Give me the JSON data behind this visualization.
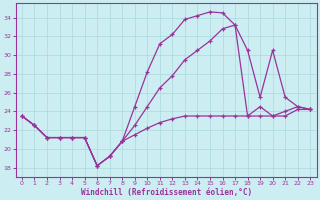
{
  "xlabel": "Windchill (Refroidissement éolien,°C)",
  "bg_color": "#cceef2",
  "grid_color": "#aad8dc",
  "line_color": "#993399",
  "xlim_min": -0.5,
  "xlim_max": 23.5,
  "ylim_min": 17.0,
  "ylim_max": 35.5,
  "yticks": [
    18,
    20,
    22,
    24,
    26,
    28,
    30,
    32,
    34
  ],
  "xticks": [
    0,
    1,
    2,
    3,
    4,
    5,
    6,
    7,
    8,
    9,
    10,
    11,
    12,
    13,
    14,
    15,
    16,
    17,
    18,
    19,
    20,
    21,
    22,
    23
  ],
  "curve1_x": [
    0,
    1,
    2,
    3,
    4,
    5,
    6,
    7,
    8,
    9,
    10,
    11,
    12,
    13,
    14,
    15,
    16,
    17,
    18,
    19,
    20,
    21,
    22,
    23
  ],
  "curve1_y": [
    23.5,
    22.5,
    21.2,
    21.2,
    21.2,
    21.2,
    18.2,
    19.2,
    20.8,
    24.5,
    28.2,
    31.2,
    32.2,
    33.8,
    34.2,
    34.6,
    34.5,
    33.2,
    30.5,
    25.5,
    30.5,
    25.5,
    24.5,
    24.2
  ],
  "curve2_x": [
    0,
    1,
    2,
    3,
    4,
    5,
    6,
    7,
    8,
    9,
    10,
    11,
    12,
    13,
    14,
    15,
    16,
    17,
    18,
    19,
    20,
    21,
    22,
    23
  ],
  "curve2_y": [
    23.5,
    22.5,
    21.2,
    21.2,
    21.2,
    21.2,
    18.2,
    19.2,
    20.8,
    22.5,
    24.5,
    26.5,
    27.8,
    29.5,
    30.5,
    31.5,
    32.8,
    33.2,
    23.5,
    24.5,
    23.5,
    24.0,
    24.5,
    24.2
  ],
  "curve3_x": [
    0,
    1,
    2,
    3,
    4,
    5,
    6,
    7,
    8,
    9,
    10,
    11,
    12,
    13,
    14,
    15,
    16,
    17,
    18,
    19,
    20,
    21,
    22,
    23
  ],
  "curve3_y": [
    23.5,
    22.5,
    21.2,
    21.2,
    21.2,
    21.2,
    18.2,
    19.2,
    20.8,
    21.5,
    22.2,
    22.8,
    23.2,
    23.5,
    23.5,
    23.5,
    23.5,
    23.5,
    23.5,
    23.5,
    23.5,
    23.5,
    24.2,
    24.2
  ]
}
